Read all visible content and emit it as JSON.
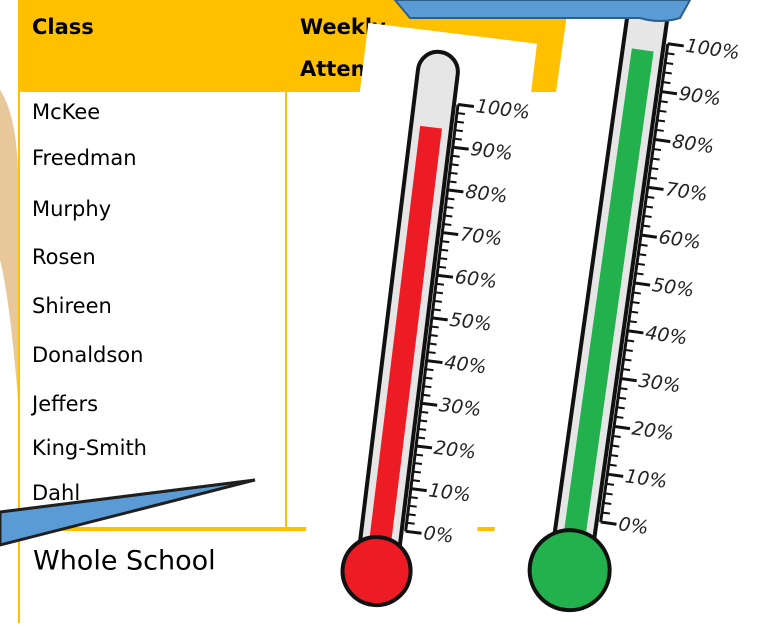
{
  "table": {
    "header": [
      "Class",
      [
        "Weekly",
        "Attenda"
      ]
    ],
    "rows": [
      "McKee",
      "Freedman",
      "Murphy",
      "Rosen",
      "Shireen",
      "Donaldson",
      "Jeffers",
      "King-Smith",
      "Dahl"
    ],
    "footer": "Whole School"
  },
  "gauges": [
    {
      "value": 94,
      "color": "#ed1c24",
      "ticks": [
        {
          "value": 0,
          "label": "0%"
        },
        {
          "value": 10,
          "label": "10%"
        },
        {
          "value": 20,
          "label": "20%"
        },
        {
          "value": 30,
          "label": "30%"
        },
        {
          "value": 40,
          "label": "40%"
        },
        {
          "value": 50,
          "label": "50%"
        },
        {
          "value": 60,
          "label": "60%"
        },
        {
          "value": 70,
          "label": "70%"
        },
        {
          "value": 80,
          "label": "80%"
        },
        {
          "value": 90,
          "label": "90%"
        },
        {
          "value": 100,
          "label": "100%"
        }
      ]
    },
    {
      "value": 98,
      "color": "#22b14c",
      "ticks": [
        {
          "value": 0,
          "label": "0%"
        },
        {
          "value": 10,
          "label": "10%"
        },
        {
          "value": 20,
          "label": "20%"
        },
        {
          "value": 30,
          "label": "30%"
        },
        {
          "value": 40,
          "label": "40%"
        },
        {
          "value": 50,
          "label": "50%"
        },
        {
          "value": 60,
          "label": "60%"
        },
        {
          "value": 70,
          "label": "70%"
        },
        {
          "value": 80,
          "label": "80%"
        },
        {
          "value": 90,
          "label": "90%"
        },
        {
          "value": 100,
          "label": "100%"
        }
      ]
    }
  ]
}
